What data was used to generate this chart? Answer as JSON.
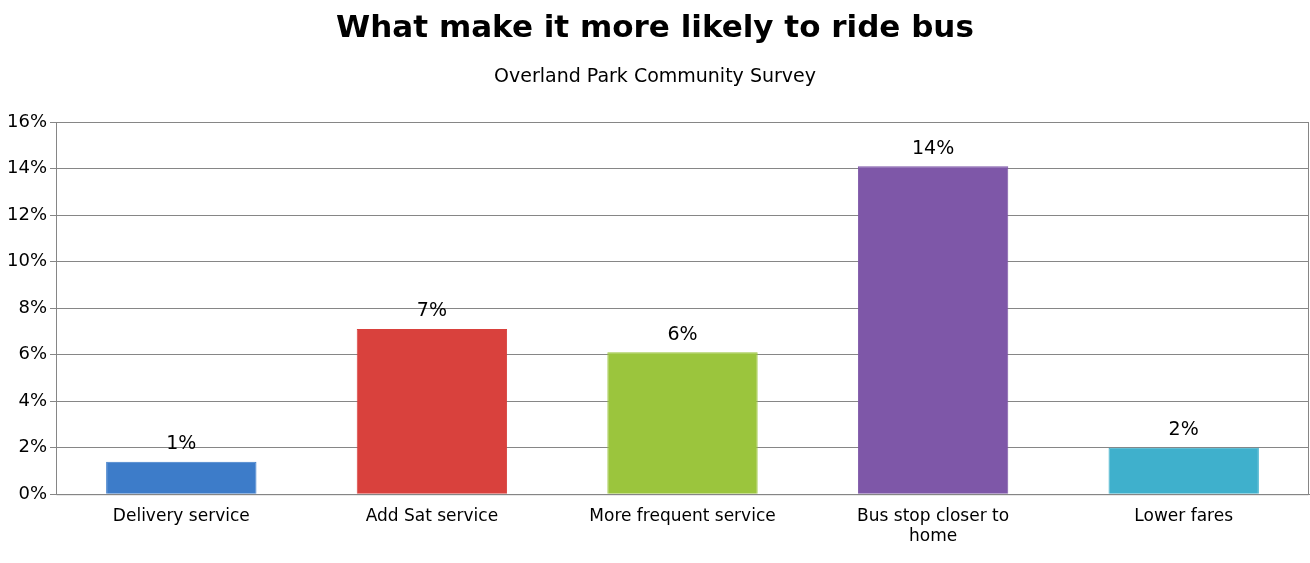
{
  "chart_data": {
    "type": "bar",
    "title": "What make it more likely to ride bus",
    "subtitle": "Overland Park Community Survey",
    "categories": [
      "Delivery service",
      "Add Sat service",
      "More frequent service",
      "Bus stop closer to home",
      "Lower fares"
    ],
    "values": [
      1.4,
      7.1,
      6.1,
      14.1,
      2.0
    ],
    "value_labels": [
      "1%",
      "7%",
      "6%",
      "14%",
      "2%"
    ],
    "colors": [
      "#3d7cc9",
      "#d9413d",
      "#9bc53d",
      "#7e57a8",
      "#3fb0cc"
    ],
    "ylim": [
      0,
      16
    ],
    "yticks": [
      {
        "value": 0,
        "label": "0%"
      },
      {
        "value": 2,
        "label": "2%"
      },
      {
        "value": 4,
        "label": "4%"
      },
      {
        "value": 6,
        "label": "6%"
      },
      {
        "value": 8,
        "label": "8%"
      },
      {
        "value": 10,
        "label": "10%"
      },
      {
        "value": 12,
        "label": "12%"
      },
      {
        "value": 14,
        "label": "14%"
      },
      {
        "value": 16,
        "label": "16%"
      }
    ],
    "grid": "y",
    "legend": false
  }
}
